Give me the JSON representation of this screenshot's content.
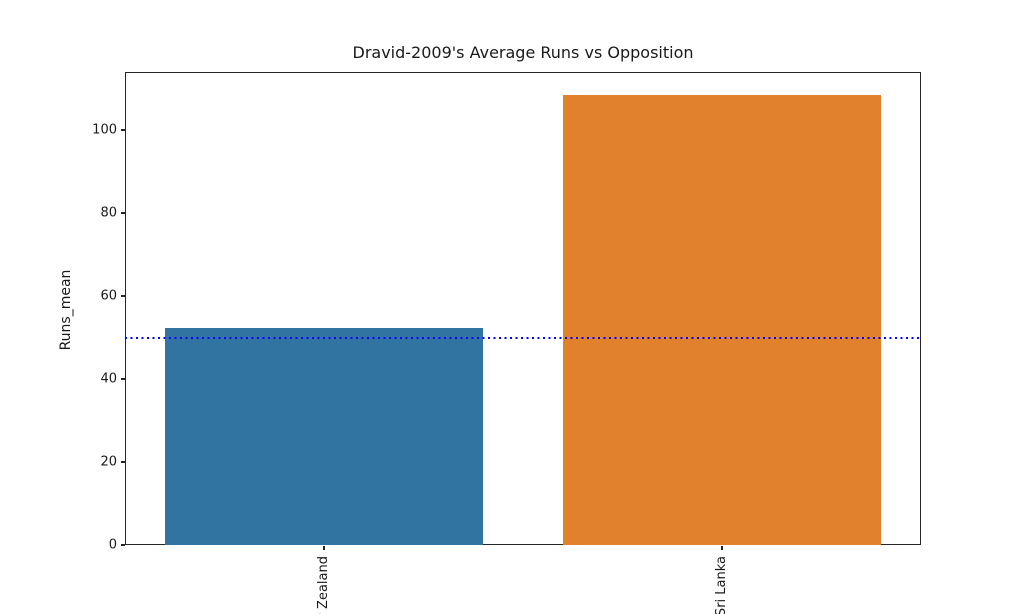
{
  "chart_data": {
    "type": "bar",
    "title": "Dravid-2009's Average Runs vs Opposition",
    "ylabel": "Runs_mean",
    "xlabel": "",
    "categories": [
      "New Zealand",
      "Sri Lanka"
    ],
    "values": [
      52.3,
      108.5
    ],
    "bar_colors": [
      "#3274a1",
      "#e1812c"
    ],
    "yticks": [
      0,
      20,
      40,
      60,
      80,
      100
    ],
    "ylim": [
      0,
      114
    ],
    "grid": false,
    "legend": false,
    "bar_width_fraction": 0.8,
    "x_tick_label_rotation_deg": 90,
    "reference_line": {
      "value": 50,
      "color": "#0000ff",
      "style": "dotted"
    },
    "axis_color": "#262626",
    "text_color": "#1a1a1a",
    "background": "#ffffff"
  }
}
